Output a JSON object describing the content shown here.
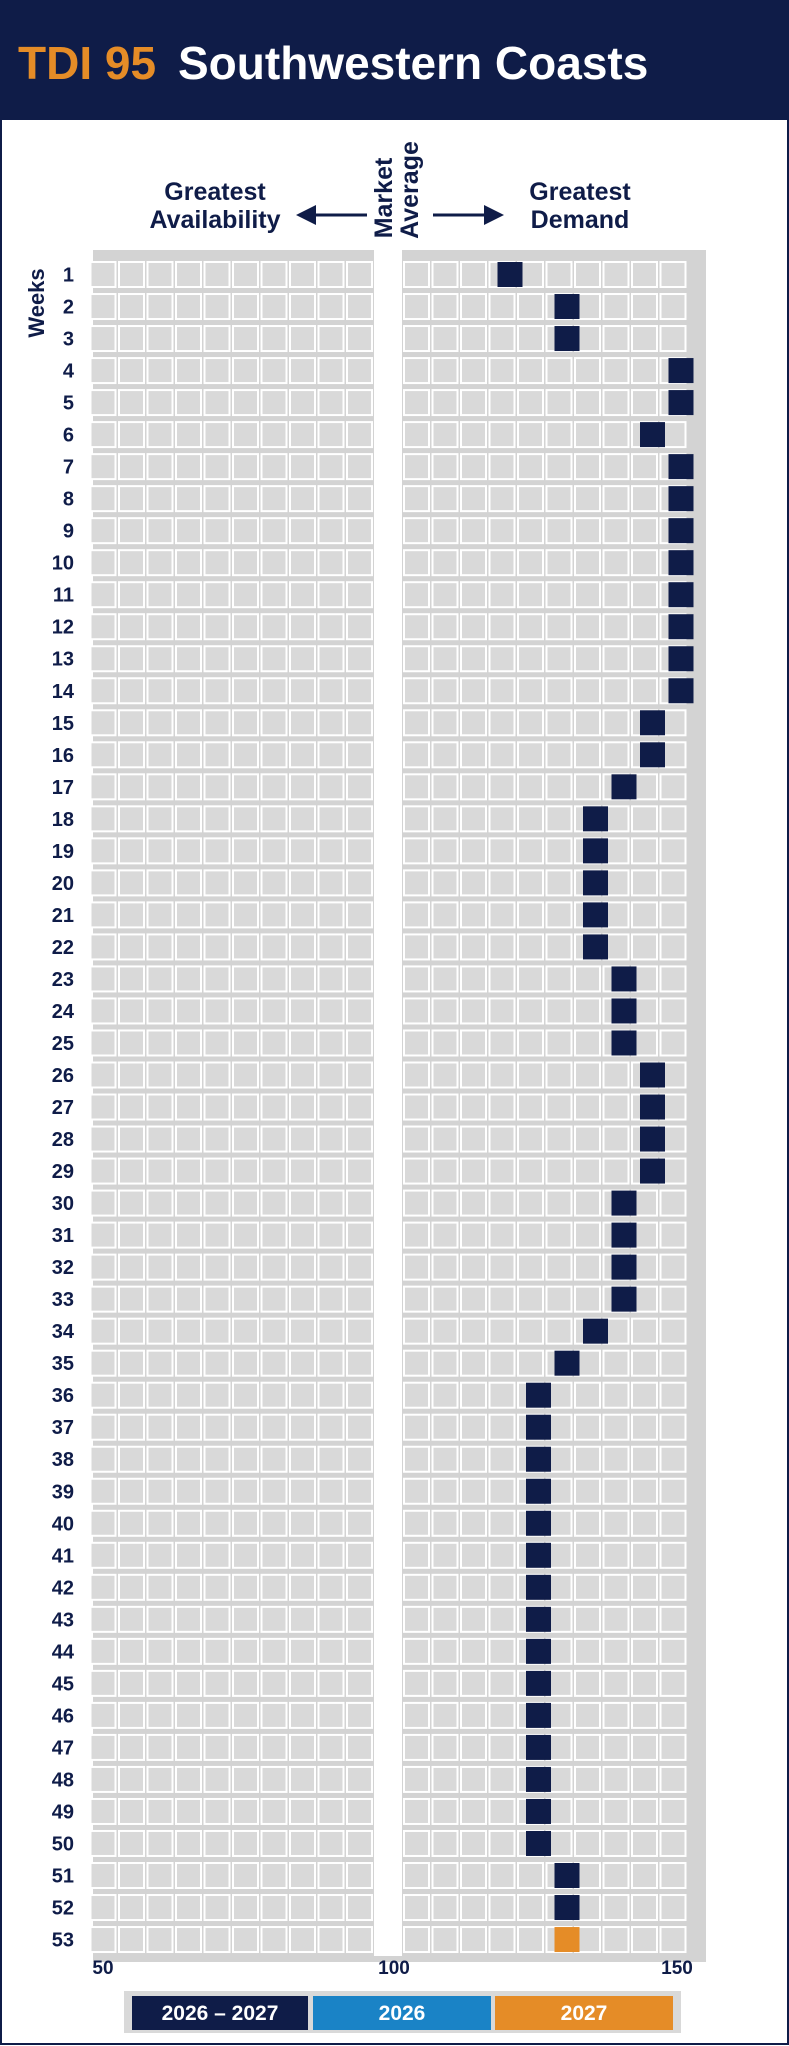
{
  "header": {
    "code": "TDI 95",
    "name": "Southwestern Coasts"
  },
  "labels": {
    "left_l1": "Greatest",
    "left_l2": "Availability",
    "right_l1": "Greatest",
    "right_l2": "Demand",
    "center_l1": "Market",
    "center_l2": "Average",
    "weeks": "Weeks"
  },
  "colors": {
    "navy": "#0f1c48",
    "blue": "#1a83c6",
    "orange": "#e58c27",
    "cell": "#d9d9d9",
    "panel": "#d3d3d3"
  },
  "chart_data": {
    "type": "heatmap",
    "title": "TDI 95 Southwestern Coasts",
    "xlim": [
      50,
      150
    ],
    "x_ticks": [
      "50",
      "100",
      "150"
    ],
    "y_categories": [
      "1",
      "2",
      "3",
      "4",
      "5",
      "6",
      "7",
      "8",
      "9",
      "10",
      "11",
      "12",
      "13",
      "14",
      "15",
      "16",
      "17",
      "18",
      "19",
      "20",
      "21",
      "22",
      "23",
      "24",
      "25",
      "26",
      "27",
      "28",
      "29",
      "30",
      "31",
      "32",
      "33",
      "34",
      "35",
      "36",
      "37",
      "38",
      "39",
      "40",
      "41",
      "42",
      "43",
      "44",
      "45",
      "46",
      "47",
      "48",
      "49",
      "50",
      "51",
      "52",
      "53"
    ],
    "series": [
      {
        "name": "2026 – 2027",
        "color": "#0f1c48",
        "values": [
          120,
          130,
          130,
          150,
          150,
          145,
          150,
          150,
          150,
          150,
          150,
          150,
          150,
          150,
          145,
          145,
          140,
          135,
          135,
          135,
          135,
          135,
          140,
          140,
          140,
          145,
          145,
          145,
          145,
          140,
          140,
          140,
          140,
          135,
          130,
          125,
          125,
          125,
          125,
          125,
          125,
          125,
          125,
          125,
          125,
          125,
          125,
          125,
          125,
          125,
          130,
          130,
          null
        ]
      },
      {
        "name": "2026",
        "color": "#1a83c6",
        "values": []
      },
      {
        "name": "2027",
        "color": "#e58c27",
        "values": [
          null,
          null,
          null,
          null,
          null,
          null,
          null,
          null,
          null,
          null,
          null,
          null,
          null,
          null,
          null,
          null,
          null,
          null,
          null,
          null,
          null,
          null,
          null,
          null,
          null,
          null,
          null,
          null,
          null,
          null,
          null,
          null,
          null,
          null,
          null,
          null,
          null,
          null,
          null,
          null,
          null,
          null,
          null,
          null,
          null,
          null,
          null,
          null,
          null,
          null,
          null,
          null,
          130
        ]
      }
    ],
    "legend": [
      "2026 – 2027",
      "2026",
      "2027"
    ],
    "legend_position": "bottom"
  }
}
